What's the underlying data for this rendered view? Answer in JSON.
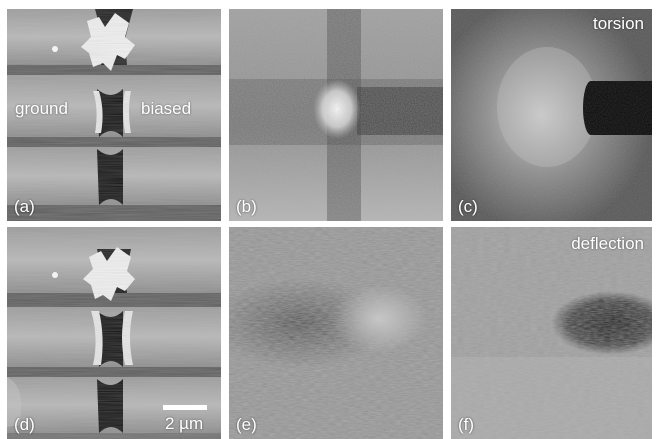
{
  "panels": [
    {
      "id": "a",
      "label": "(a)"
    },
    {
      "id": "b",
      "label": "(b)"
    },
    {
      "id": "c",
      "label": "(c)"
    },
    {
      "id": "d",
      "label": "(d)"
    },
    {
      "id": "e",
      "label": "(e)"
    },
    {
      "id": "f",
      "label": "(f)"
    }
  ],
  "annotations": {
    "ground": "ground",
    "biased": "biased",
    "torsion": "torsion",
    "deflection": "deflection",
    "scale": "2 µm"
  },
  "colors": {
    "label_text": "#ffffff",
    "figure_background": "#ffffff"
  }
}
